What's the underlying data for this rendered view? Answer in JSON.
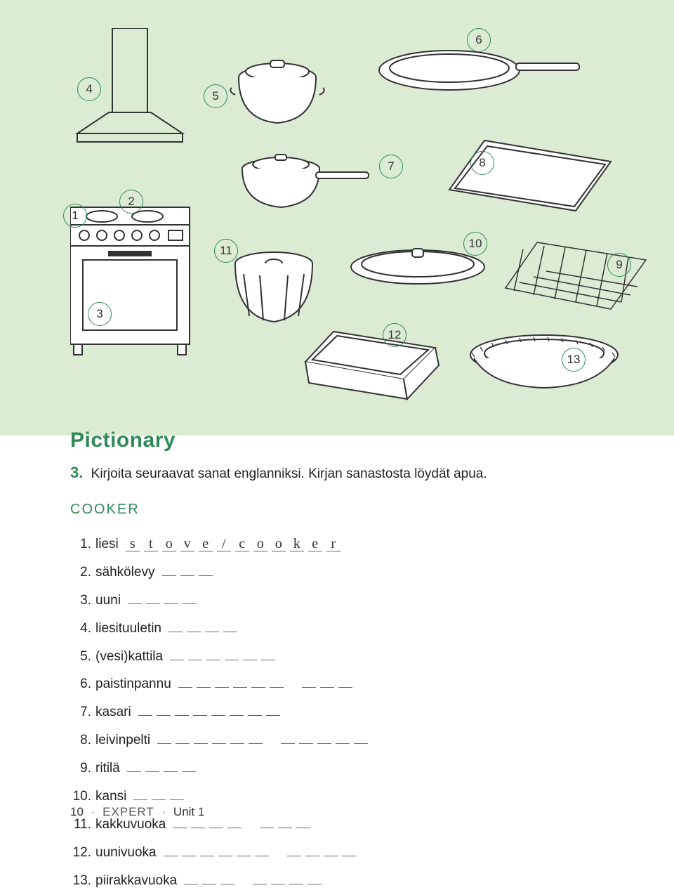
{
  "colors": {
    "page_bg": "#dcebd4",
    "accent": "#2e8b57",
    "text": "#222222",
    "line": "#333333"
  },
  "illustration": {
    "labels": {
      "1": "1",
      "2": "2",
      "3": "3",
      "4": "4",
      "5": "5",
      "6": "6",
      "7": "7",
      "8": "8",
      "9": "9",
      "10": "10",
      "11": "11",
      "12": "12",
      "13": "13"
    }
  },
  "section_title": "Pictionary",
  "exercise_number": "3.",
  "instruction": "Kirjoita seuraavat sanat englanniksi. Kirjan sanastosta löydät apua.",
  "category": "COOKER",
  "items": [
    {
      "num": "1.",
      "fi": "liesi",
      "answer": "stove/cooker",
      "blanks": 12,
      "gaps": []
    },
    {
      "num": "2.",
      "fi": "sähkölevy",
      "answer": "",
      "blanks": 3,
      "gaps": []
    },
    {
      "num": "3.",
      "fi": "uuni",
      "answer": "",
      "blanks": 4,
      "gaps": []
    },
    {
      "num": "4.",
      "fi": "liesituuletin",
      "answer": "",
      "blanks": 4,
      "gaps": []
    },
    {
      "num": "5.",
      "fi": "(vesi)kattila",
      "answer": "",
      "blanks": 6,
      "gaps": []
    },
    {
      "num": "6.",
      "fi": "paistinpannu",
      "answer": "",
      "blanks": 9,
      "gaps": [
        6
      ]
    },
    {
      "num": "7.",
      "fi": "kasari",
      "answer": "",
      "blanks": 8,
      "gaps": []
    },
    {
      "num": "8.",
      "fi": "leivinpelti",
      "answer": "",
      "blanks": 11,
      "gaps": [
        6
      ]
    },
    {
      "num": "9.",
      "fi": "ritilä",
      "answer": "",
      "blanks": 4,
      "gaps": []
    },
    {
      "num": "10.",
      "fi": "kansi",
      "answer": "",
      "blanks": 3,
      "gaps": []
    },
    {
      "num": "11.",
      "fi": "kakkuvuoka",
      "answer": "",
      "blanks": 7,
      "gaps": [
        4
      ]
    },
    {
      "num": "12.",
      "fi": "uunivuoka",
      "answer": "",
      "blanks": 10,
      "gaps": [
        6
      ]
    },
    {
      "num": "13.",
      "fi": "piirakkavuoka",
      "answer": "",
      "blanks": 7,
      "gaps": [
        3
      ]
    }
  ],
  "footer": {
    "page": "10",
    "series": "EXPERT",
    "unit": "Unit 1"
  }
}
